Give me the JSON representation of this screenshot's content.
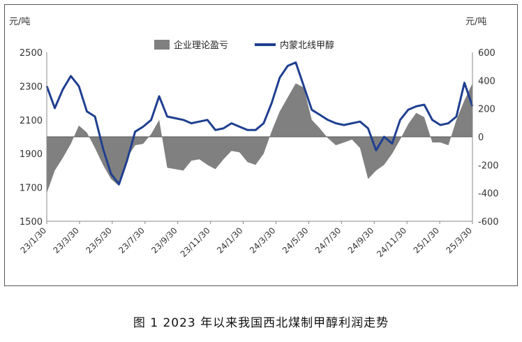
{
  "caption": "图 1  2023 年以来我国西北煤制甲醇利润走势",
  "chart_data": {
    "type": "line+area",
    "left_axis": {
      "unit": "元/吨",
      "ylim": [
        1500,
        2500
      ],
      "ticks": [
        1500,
        1700,
        1900,
        2100,
        2300,
        2500
      ]
    },
    "right_axis": {
      "unit": "元/吨",
      "ylim": [
        -600,
        600
      ],
      "ticks": [
        -600,
        -400,
        -200,
        0,
        200,
        400,
        600
      ]
    },
    "x_tick_labels": [
      "23/1/30",
      "23/3/30",
      "23/5/30",
      "23/7/30",
      "23/9/30",
      "23/11/30",
      "24/1/30",
      "24/3/30",
      "24/5/30",
      "24/7/30",
      "24/9/30",
      "24/11/30",
      "25/1/30",
      "25/3/30"
    ],
    "legend": [
      "企业理论盈亏",
      "内蒙北线甲醇"
    ],
    "series": [
      {
        "name": "企业理论盈亏",
        "axis": "right",
        "style": "area",
        "color": "#808080",
        "x": [
          "23/1/30",
          "23/2/10",
          "23/2/25",
          "23/3/10",
          "23/3/30",
          "23/4/15",
          "23/4/30",
          "23/5/15",
          "23/5/30",
          "23/6/10",
          "23/6/25",
          "23/7/10",
          "23/7/30",
          "23/8/15",
          "23/8/30",
          "23/9/10",
          "23/9/30",
          "23/10/15",
          "23/10/30",
          "23/11/15",
          "23/11/30",
          "23/12/15",
          "23/12/30",
          "24/1/15",
          "24/1/30",
          "24/2/15",
          "24/2/29",
          "24/3/15",
          "24/3/30",
          "24/4/10",
          "24/4/20",
          "24/4/30",
          "24/5/10",
          "24/5/30",
          "24/6/15",
          "24/6/30",
          "24/7/15",
          "24/7/30",
          "24/8/15",
          "24/8/30",
          "24/9/10",
          "24/9/30",
          "24/10/15",
          "24/10/30",
          "24/11/15",
          "24/11/30",
          "24/12/15",
          "24/12/30",
          "25/1/15",
          "25/1/30",
          "25/2/15",
          "25/2/28",
          "25/3/15",
          "25/3/30"
        ],
        "values": [
          -400,
          -240,
          -150,
          -50,
          80,
          30,
          -80,
          -200,
          -300,
          -350,
          -150,
          -60,
          -50,
          20,
          120,
          -220,
          -230,
          -240,
          -170,
          -160,
          -200,
          -230,
          -160,
          -100,
          -110,
          -180,
          -200,
          -120,
          40,
          180,
          280,
          380,
          350,
          120,
          60,
          -10,
          -60,
          -40,
          -20,
          -80,
          -300,
          -240,
          -200,
          -120,
          -20,
          90,
          170,
          140,
          -40,
          -40,
          -60,
          120,
          260,
          380
        ]
      },
      {
        "name": "内蒙北线甲醇",
        "axis": "left",
        "style": "line",
        "color": "#1f3f8f",
        "x": [
          "23/1/30",
          "23/2/10",
          "23/2/25",
          "23/3/10",
          "23/3/30",
          "23/4/15",
          "23/4/30",
          "23/5/15",
          "23/5/30",
          "23/6/10",
          "23/6/25",
          "23/7/10",
          "23/7/30",
          "23/8/15",
          "23/8/30",
          "23/9/10",
          "23/9/30",
          "23/10/15",
          "23/10/30",
          "23/11/15",
          "23/11/30",
          "23/12/15",
          "23/12/30",
          "24/1/15",
          "24/1/30",
          "24/2/15",
          "24/2/29",
          "24/3/15",
          "24/3/30",
          "24/4/10",
          "24/4/20",
          "24/4/30",
          "24/5/10",
          "24/5/30",
          "24/6/15",
          "24/6/30",
          "24/7/15",
          "24/7/30",
          "24/8/15",
          "24/8/30",
          "24/9/10",
          "24/9/30",
          "24/10/15",
          "24/10/30",
          "24/11/15",
          "24/11/30",
          "24/12/15",
          "24/12/30",
          "25/1/15",
          "25/1/30",
          "25/2/15",
          "25/2/28",
          "25/3/15",
          "25/3/30"
        ],
        "values": [
          2300,
          2170,
          2280,
          2360,
          2300,
          2150,
          2120,
          1930,
          1780,
          1720,
          1860,
          2030,
          2060,
          2100,
          2240,
          2120,
          2110,
          2100,
          2080,
          2090,
          2100,
          2040,
          2050,
          2080,
          2060,
          2040,
          2040,
          2080,
          2200,
          2350,
          2420,
          2440,
          2300,
          2160,
          2130,
          2100,
          2080,
          2070,
          2080,
          2090,
          2050,
          1920,
          2000,
          1960,
          2100,
          2160,
          2180,
          2190,
          2100,
          2070,
          2080,
          2120,
          2320,
          2180
        ]
      }
    ]
  }
}
